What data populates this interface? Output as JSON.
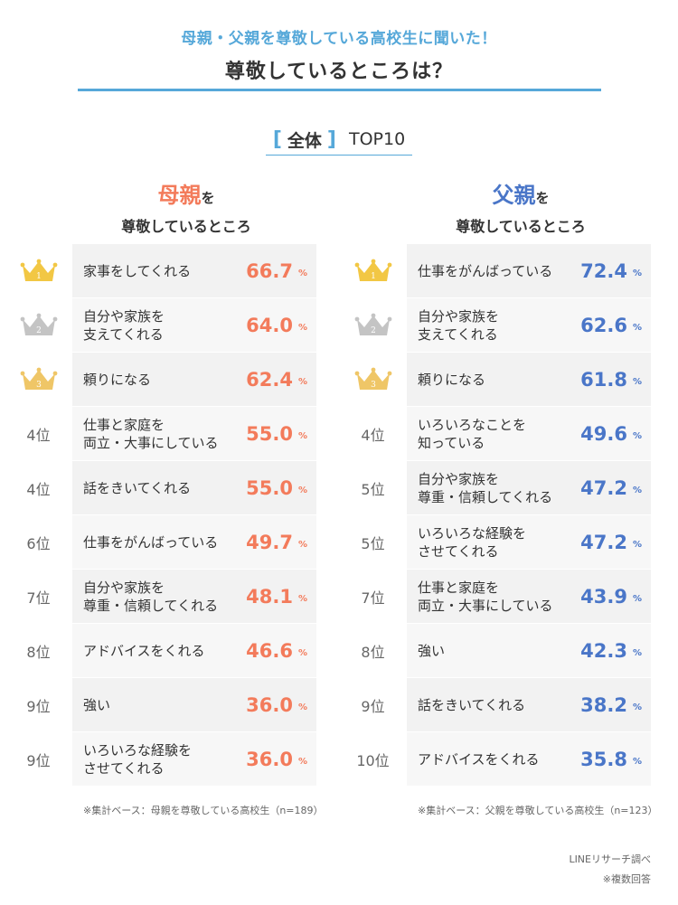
{
  "header": {
    "subtitle": "母親・父親を尊敬している高校生に聞いた！",
    "title": "尊敬しているところは？"
  },
  "tag": {
    "bracket_open": "[",
    "label": "全体",
    "bracket_close": "]",
    "top": "TOP10"
  },
  "colors": {
    "accent": "#56a8d9",
    "mother": "#f37b5b",
    "father": "#4a76c8",
    "gold": "#f2c744",
    "silver": "#c4c4c4",
    "bronze": "#efc667"
  },
  "chart_data": [
    {
      "type": "table",
      "group": "mother",
      "heading_name": "母親",
      "heading_particle": "を",
      "heading_sub": "尊敬しているところ",
      "unit": "%",
      "rows": [
        {
          "rank": "1",
          "label": "家事をしてくれる",
          "value": 66.7,
          "display": "66.7"
        },
        {
          "rank": "2",
          "label": "自分や家族を\n支えてくれる",
          "value": 64.0,
          "display": "64.0"
        },
        {
          "rank": "3",
          "label": "頼りになる",
          "value": 62.4,
          "display": "62.4"
        },
        {
          "rank": "4位",
          "label": "仕事と家庭を\n両立・大事にしている",
          "value": 55.0,
          "display": "55.0"
        },
        {
          "rank": "4位",
          "label": "話をきいてくれる",
          "value": 55.0,
          "display": "55.0"
        },
        {
          "rank": "6位",
          "label": "仕事をがんばっている",
          "value": 49.7,
          "display": "49.7"
        },
        {
          "rank": "7位",
          "label": "自分や家族を\n尊重・信頼してくれる",
          "value": 48.1,
          "display": "48.1"
        },
        {
          "rank": "8位",
          "label": "アドバイスをくれる",
          "value": 46.6,
          "display": "46.6"
        },
        {
          "rank": "9位",
          "label": "強い",
          "value": 36.0,
          "display": "36.0"
        },
        {
          "rank": "9位",
          "label": "いろいろな経験を\nさせてくれる",
          "value": 36.0,
          "display": "36.0"
        }
      ],
      "note": "※集計ベース：母親を尊敬している高校生（n=189）"
    },
    {
      "type": "table",
      "group": "father",
      "heading_name": "父親",
      "heading_particle": "を",
      "heading_sub": "尊敬しているところ",
      "unit": "%",
      "rows": [
        {
          "rank": "1",
          "label": "仕事をがんばっている",
          "value": 72.4,
          "display": "72.4"
        },
        {
          "rank": "2",
          "label": "自分や家族を\n支えてくれる",
          "value": 62.6,
          "display": "62.6"
        },
        {
          "rank": "3",
          "label": "頼りになる",
          "value": 61.8,
          "display": "61.8"
        },
        {
          "rank": "4位",
          "label": "いろいろなことを\n知っている",
          "value": 49.6,
          "display": "49.6"
        },
        {
          "rank": "5位",
          "label": "自分や家族を\n尊重・信頼してくれる",
          "value": 47.2,
          "display": "47.2"
        },
        {
          "rank": "5位",
          "label": "いろいろな経験を\nさせてくれる",
          "value": 47.2,
          "display": "47.2"
        },
        {
          "rank": "7位",
          "label": "仕事と家庭を\n両立・大事にしている",
          "value": 43.9,
          "display": "43.9"
        },
        {
          "rank": "8位",
          "label": "強い",
          "value": 42.3,
          "display": "42.3"
        },
        {
          "rank": "9位",
          "label": "話をきいてくれる",
          "value": 38.2,
          "display": "38.2"
        },
        {
          "rank": "10位",
          "label": "アドバイスをくれる",
          "value": 35.8,
          "display": "35.8"
        }
      ],
      "note": "※集計ベース：父親を尊敬している高校生（n=123）"
    }
  ],
  "credit": {
    "source": "LINEリサーチ調べ",
    "multi": "※複数回答"
  }
}
